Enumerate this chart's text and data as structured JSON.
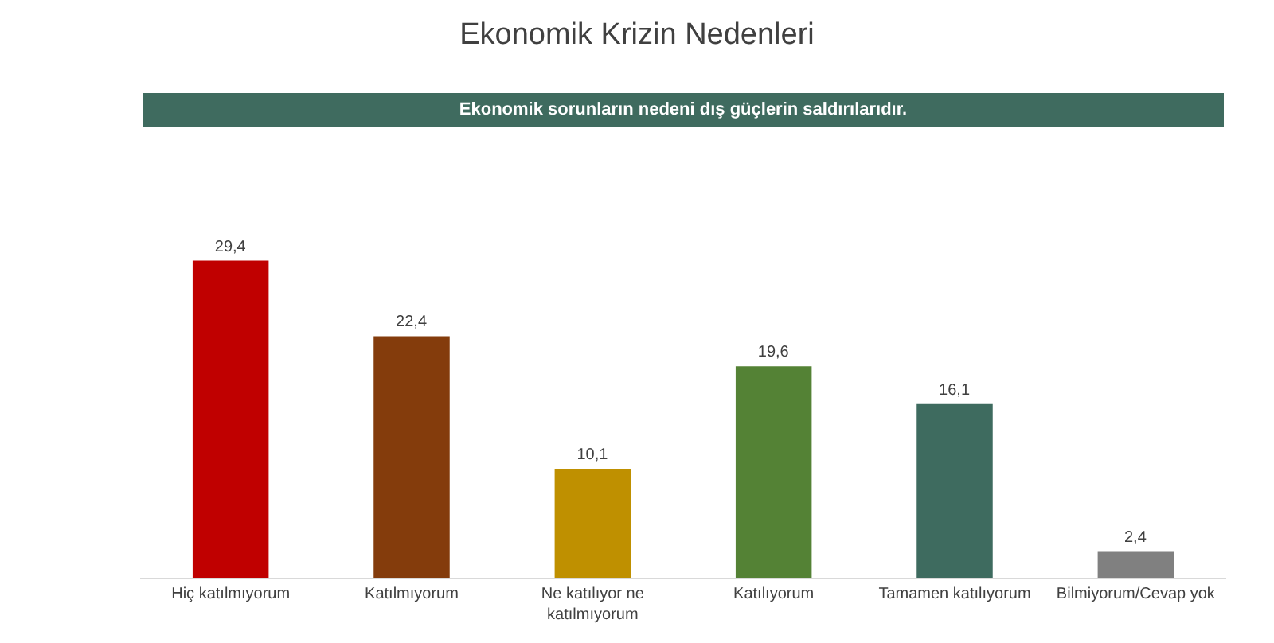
{
  "chart_data": {
    "type": "bar",
    "title": "Ekonomik Krizin Nedenleri",
    "subtitle": "Ekonomik sorunların nedeni dış güçlerin saldırılarıdır.",
    "categories": [
      "Hiç katılmıyorum",
      "Katılmıyorum",
      "Ne katılıyor ne katılmıyorum",
      "Katılıyorum",
      "Tamamen katılıyorum",
      "Bilmiyorum/Cevap yok"
    ],
    "values": [
      29.4,
      22.4,
      10.1,
      19.6,
      16.1,
      2.4
    ],
    "colors": [
      "#c00000",
      "#843c0c",
      "#bf9000",
      "#548235",
      "#3e6b5f",
      "#808080"
    ],
    "value_labels": [
      "29,4",
      "22,4",
      "10,1",
      "19,6",
      "16,1",
      "2,4"
    ]
  }
}
